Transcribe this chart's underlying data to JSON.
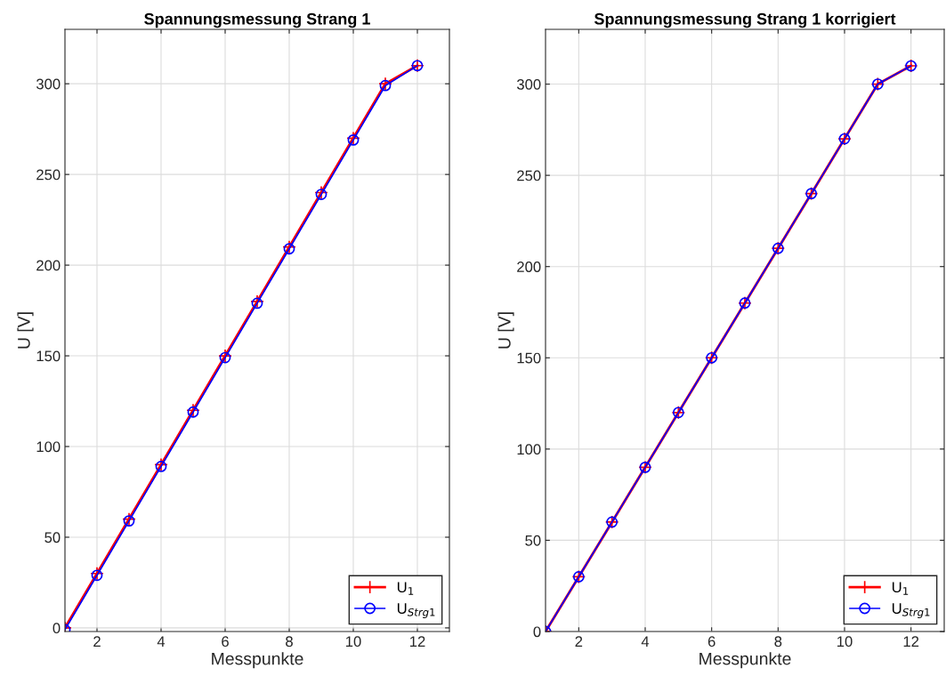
{
  "chart_data": [
    {
      "type": "line",
      "title": "Spannungsmessung Strang 1",
      "xlabel": "Messpunkte",
      "ylabel": "U [V]",
      "x": [
        1,
        2,
        3,
        4,
        5,
        6,
        7,
        8,
        9,
        10,
        11,
        12
      ],
      "xlim": [
        1,
        13
      ],
      "xticks": [
        2,
        4,
        6,
        8,
        10,
        12
      ],
      "ylim": [
        -2,
        330
      ],
      "yticks": [
        0,
        50,
        100,
        150,
        200,
        250,
        300
      ],
      "grid": true,
      "legend": "bottom right",
      "series": [
        {
          "name": "U$_{1}$",
          "color": "#ff0000",
          "marker": "cross",
          "values": [
            0,
            30,
            60,
            90,
            120,
            150,
            180,
            210,
            240,
            270,
            300,
            310
          ]
        },
        {
          "name": "U$_{Strg1}$",
          "color": "#0000ff",
          "marker": "circle",
          "values": [
            -1,
            29,
            59,
            89,
            119,
            149,
            179,
            209,
            239,
            269,
            299,
            310
          ]
        }
      ]
    },
    {
      "type": "line",
      "title": "Spannungsmessung Strang 1 korrigiert",
      "xlabel": "Messpunkte",
      "ylabel": "U [V]",
      "x": [
        1,
        2,
        3,
        4,
        5,
        6,
        7,
        8,
        9,
        10,
        11,
        12
      ],
      "xlim": [
        1,
        13
      ],
      "xticks": [
        2,
        4,
        6,
        8,
        10,
        12
      ],
      "ylim": [
        0,
        330
      ],
      "yticks": [
        0,
        50,
        100,
        150,
        200,
        250,
        300
      ],
      "grid": true,
      "legend": "bottom right",
      "series": [
        {
          "name": "U$_{1}$",
          "color": "#ff0000",
          "marker": "cross",
          "values": [
            0,
            30,
            60,
            90,
            120,
            150,
            180,
            210,
            240,
            270,
            300,
            310
          ]
        },
        {
          "name": "U$_{Strg1}$",
          "color": "#0000ff",
          "marker": "circle",
          "values": [
            0,
            30,
            60,
            90,
            120,
            150,
            180,
            210,
            240,
            270,
            300,
            310
          ]
        }
      ]
    }
  ]
}
